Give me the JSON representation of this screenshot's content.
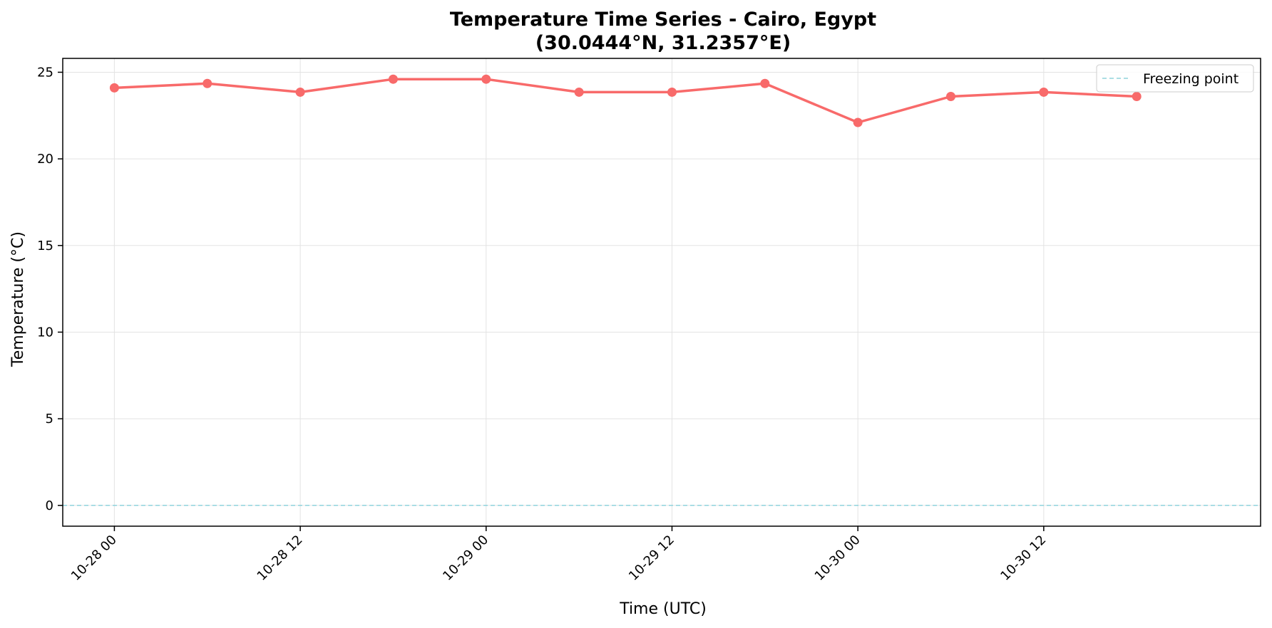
{
  "chart_data": {
    "type": "line",
    "title_line1": "Temperature Time Series - Cairo, Egypt",
    "title_line2": "(30.0444°N, 31.2357°E)",
    "xlabel": "Time (UTC)",
    "ylabel": "Temperature (°C)",
    "x_ticks": [
      "10-28 00",
      "10-28 12",
      "10-29 00",
      "10-29 12",
      "10-30 00",
      "10-30 12"
    ],
    "y_ticks": [
      0,
      5,
      10,
      15,
      20,
      25
    ],
    "ylim": [
      -1.2,
      25.8
    ],
    "xlim": [
      "10-27 20:40",
      "10-31 02:00"
    ],
    "grid": true,
    "legend_position": "top-right",
    "series": [
      {
        "color": "#f86a6a",
        "marker": "circle",
        "x": [
          "10-28 00:00",
          "10-28 06:00",
          "10-28 12:00",
          "10-28 18:00",
          "10-29 00:00",
          "10-29 06:00",
          "10-29 12:00",
          "10-29 18:00",
          "10-30 00:00",
          "10-30 06:00",
          "10-30 12:00",
          "10-30 18:00"
        ],
        "values": [
          24.1,
          24.35,
          23.85,
          24.6,
          24.6,
          23.85,
          23.85,
          24.35,
          22.1,
          23.6,
          23.85,
          23.6
        ]
      }
    ],
    "reference_line": {
      "name": "Freezing point",
      "y": 0,
      "color": "#8fd3dc",
      "style": "dashed"
    }
  }
}
